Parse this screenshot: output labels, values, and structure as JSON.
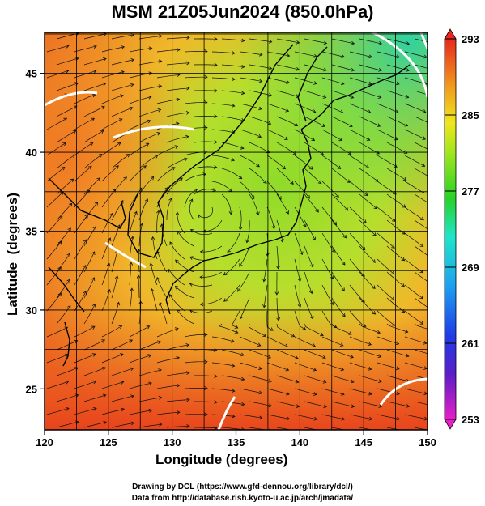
{
  "title": "MSM 21Z05Jun2024 (850.0hPa)",
  "axes": {
    "x_label": "Longitude (degrees)",
    "y_label": "Latitude  (degrees)",
    "x_ticks": [
      "120",
      "125",
      "130",
      "135",
      "140",
      "145",
      "150"
    ],
    "y_ticks": [
      "25",
      "30",
      "35",
      "40",
      "45"
    ],
    "x_range": [
      120,
      150
    ],
    "y_range": [
      22.4,
      47.6
    ]
  },
  "colorbar": {
    "labels": [
      "293",
      "285",
      "277",
      "269",
      "261",
      "253"
    ],
    "range": [
      253,
      293
    ]
  },
  "footer": {
    "line1": "Drawing by DCL (https://www.gfd-dennou.org/library/dcl/)",
    "line2": "Data from http://database.rish.kyoto-u.ac.jp/arch/jmadata/"
  },
  "colors": {
    "warm": "#e8401a",
    "mid": "#7ad62a",
    "cool": "#2fd3a0"
  }
}
